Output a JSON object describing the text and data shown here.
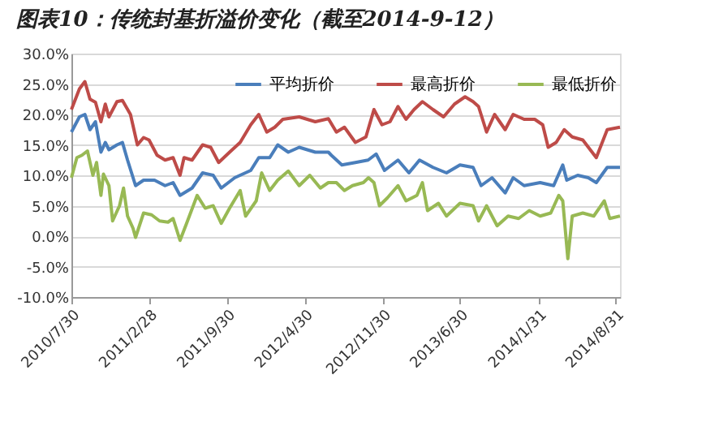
{
  "chart_data": {
    "type": "line",
    "title": "图表10：传统封基折溢价变化（截至2014-9-12）",
    "xlim": [
      "2010-07-30",
      "2014-09-12"
    ],
    "xticks": [
      {
        "value": "2010-07-30",
        "label": "2010/7/30"
      },
      {
        "value": "2011-02-28",
        "label": "2011/2/28"
      },
      {
        "value": "2011-09-30",
        "label": "2011/9/30"
      },
      {
        "value": "2012-04-30",
        "label": "2012/4/30"
      },
      {
        "value": "2012-11-30",
        "label": "2012/11/30"
      },
      {
        "value": "2013-06-30",
        "label": "2013/6/30"
      },
      {
        "value": "2014-01-31",
        "label": "2014/1/31"
      },
      {
        "value": "2014-08-31",
        "label": "2014/8/31"
      }
    ],
    "ylim": [
      -10,
      30
    ],
    "yticks": [
      {
        "value": -10,
        "label": "-10.0%"
      },
      {
        "value": -5,
        "label": "-5.0%"
      },
      {
        "value": 0,
        "label": "0.0%"
      },
      {
        "value": 5,
        "label": "5.0%"
      },
      {
        "value": 10,
        "label": "10.0%"
      },
      {
        "value": 15,
        "label": "15.0%"
      },
      {
        "value": 20,
        "label": "20.0%"
      },
      {
        "value": 25,
        "label": "25.0%"
      },
      {
        "value": 30,
        "label": "30.0%"
      }
    ],
    "grid": "y",
    "legend": "top",
    "marker": "none",
    "line_style": "solid",
    "series": [
      {
        "name": "平均折价",
        "color": "#4a7ebb",
        "x": [
          "2010-07-30",
          "2010-08-21",
          "2010-09-05",
          "2010-09-19",
          "2010-10-04",
          "2010-10-19",
          "2010-10-31",
          "2010-11-10",
          "2010-12-02",
          "2010-12-17",
          "2010-12-31",
          "2011-01-22",
          "2011-02-13",
          "2011-03-15",
          "2011-04-13",
          "2011-05-05",
          "2011-05-24",
          "2011-06-26",
          "2011-07-25",
          "2011-08-23",
          "2011-09-14",
          "2011-10-21",
          "2011-12-04",
          "2011-12-26",
          "2012-01-25",
          "2012-02-16",
          "2012-03-16",
          "2012-04-15",
          "2012-05-29",
          "2012-07-04",
          "2012-07-12",
          "2012-08-10",
          "2012-09-16",
          "2012-10-21",
          "2012-11-12",
          "2012-12-05",
          "2013-01-11",
          "2013-02-10",
          "2013-03-11",
          "2013-04-17",
          "2013-05-24",
          "2013-06-30",
          "2013-08-05",
          "2013-08-27",
          "2013-09-26",
          "2013-11-01",
          "2013-11-23",
          "2013-12-23",
          "2014-02-05",
          "2014-03-14",
          "2014-04-08",
          "2014-04-19",
          "2014-05-19",
          "2014-06-17",
          "2014-07-09",
          "2014-08-08",
          "2014-09-12"
        ],
        "values": [
          17.1,
          19.6,
          20,
          17.5,
          18.8,
          13.8,
          15.4,
          14.2,
          15,
          15.4,
          12.5,
          8.3,
          9.2,
          9.2,
          8.3,
          8.8,
          6.7,
          7.9,
          10.4,
          10,
          7.9,
          9.6,
          10.8,
          12.9,
          12.9,
          15,
          13.8,
          14.6,
          13.8,
          13.8,
          13.3,
          11.7,
          12.1,
          12.5,
          13.5,
          10.8,
          12.5,
          10.4,
          12.5,
          11.3,
          10.4,
          11.7,
          11.3,
          8.3,
          9.6,
          7.1,
          9.6,
          8.3,
          8.8,
          8.3,
          11.7,
          9.2,
          10,
          9.6,
          8.8,
          11.3,
          11.3
        ]
      },
      {
        "name": "最高折价",
        "color": "#be4b48",
        "x": [
          "2010-07-30",
          "2010-08-21",
          "2010-09-05",
          "2010-09-19",
          "2010-10-04",
          "2010-10-19",
          "2010-10-31",
          "2010-11-10",
          "2010-12-02",
          "2010-12-17",
          "2011-01-08",
          "2011-01-27",
          "2011-02-13",
          "2011-02-28",
          "2011-03-22",
          "2011-04-13",
          "2011-05-05",
          "2011-05-24",
          "2011-06-04",
          "2011-06-26",
          "2011-07-25",
          "2011-08-16",
          "2011-09-07",
          "2011-10-07",
          "2011-11-05",
          "2011-12-04",
          "2011-12-26",
          "2012-01-17",
          "2012-02-08",
          "2012-03-01",
          "2012-04-15",
          "2012-05-29",
          "2012-07-04",
          "2012-07-26",
          "2012-08-17",
          "2012-09-16",
          "2012-10-15",
          "2012-11-06",
          "2012-11-28",
          "2012-12-20",
          "2013-01-11",
          "2013-02-02",
          "2013-02-24",
          "2013-03-19",
          "2013-04-17",
          "2013-05-16",
          "2013-06-15",
          "2013-07-14",
          "2013-08-05",
          "2013-08-20",
          "2013-09-11",
          "2013-10-03",
          "2013-11-01",
          "2013-11-23",
          "2013-12-23",
          "2014-01-21",
          "2014-02-12",
          "2014-02-27",
          "2014-03-21",
          "2014-04-12",
          "2014-05-04",
          "2014-06-02",
          "2014-07-09",
          "2014-08-08",
          "2014-09-12"
        ],
        "values": [
          20.8,
          24.2,
          25.4,
          22.5,
          22,
          18.8,
          21.7,
          19.6,
          22.1,
          22.3,
          20,
          15,
          16.2,
          15.8,
          13.3,
          12.5,
          12.9,
          10,
          12.9,
          12.5,
          15,
          14.6,
          12.1,
          13.8,
          15.4,
          18.3,
          20,
          17.1,
          17.9,
          19.2,
          19.6,
          18.8,
          19.3,
          17.1,
          17.9,
          15.4,
          16.3,
          20.8,
          18.3,
          18.8,
          21.3,
          19.2,
          20.8,
          22.1,
          20.8,
          19.6,
          21.7,
          22.9,
          22.1,
          21.3,
          17.1,
          20,
          17.5,
          20,
          19.2,
          19.2,
          18.3,
          14.6,
          15.4,
          17.5,
          16.3,
          15.8,
          12.9,
          17.5,
          17.9
        ]
      },
      {
        "name": "最低折价",
        "color": "#98b954",
        "x": [
          "2010-07-30",
          "2010-08-14",
          "2010-08-28",
          "2010-09-12",
          "2010-09-27",
          "2010-10-07",
          "2010-10-19",
          "2010-10-26",
          "2010-11-10",
          "2010-11-20",
          "2010-12-09",
          "2010-12-20",
          "2010-12-31",
          "2011-01-15",
          "2011-01-22",
          "2011-02-13",
          "2011-03-07",
          "2011-03-29",
          "2011-04-21",
          "2011-05-05",
          "2011-05-24",
          "2011-06-11",
          "2011-07-10",
          "2011-08-01",
          "2011-08-23",
          "2011-09-14",
          "2011-10-07",
          "2011-11-05",
          "2011-11-20",
          "2011-12-19",
          "2012-01-03",
          "2012-01-25",
          "2012-02-16",
          "2012-03-16",
          "2012-04-15",
          "2012-05-14",
          "2012-06-12",
          "2012-07-04",
          "2012-07-26",
          "2012-08-17",
          "2012-09-08",
          "2012-10-08",
          "2012-10-22",
          "2012-11-06",
          "2012-11-21",
          "2012-12-13",
          "2013-01-11",
          "2013-02-02",
          "2013-03-04",
          "2013-03-19",
          "2013-04-02",
          "2013-05-02",
          "2013-05-24",
          "2013-06-30",
          "2013-08-05",
          "2013-08-20",
          "2013-09-11",
          "2013-10-10",
          "2013-11-09",
          "2013-12-08",
          "2014-01-06",
          "2014-02-05",
          "2014-03-06",
          "2014-03-28",
          "2014-04-08",
          "2014-04-22",
          "2014-05-04",
          "2014-06-02",
          "2014-07-02",
          "2014-07-31",
          "2014-08-15",
          "2014-09-12"
        ],
        "values": [
          9.6,
          12.9,
          13.3,
          14,
          10,
          12.1,
          6.7,
          10.2,
          8.3,
          2.5,
          5,
          7.9,
          3.3,
          1.3,
          -0.2,
          3.8,
          3.5,
          2.5,
          2.3,
          2.9,
          -0.7,
          2.1,
          6.7,
          4.6,
          5,
          2.1,
          4.6,
          7.5,
          3.3,
          5.8,
          10.4,
          7.5,
          9.2,
          10.7,
          8.3,
          10,
          7.9,
          8.8,
          8.8,
          7.5,
          8.3,
          8.8,
          9.6,
          8.8,
          5,
          6.3,
          8.3,
          5.8,
          6.7,
          8.8,
          4.2,
          5.4,
          3.3,
          5.4,
          5,
          2.5,
          5,
          1.7,
          3.3,
          2.9,
          4.2,
          3.3,
          3.8,
          6.7,
          5.8,
          -3.7,
          3.3,
          3.8,
          3.3,
          5.8,
          2.9,
          3.3
        ]
      }
    ]
  }
}
